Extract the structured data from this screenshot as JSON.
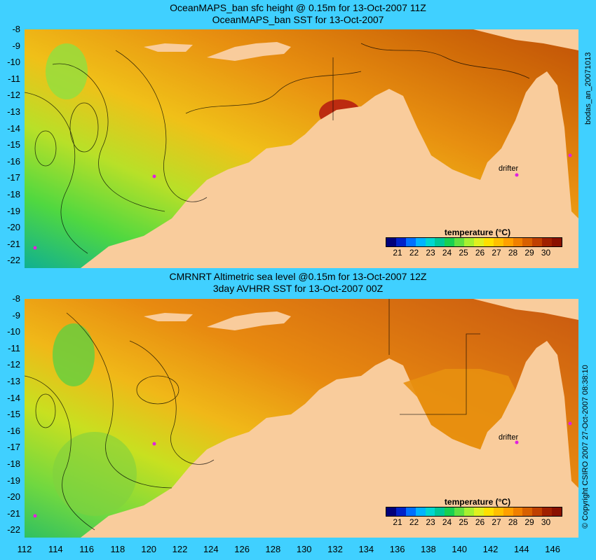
{
  "top_panel": {
    "title_line1": "OceanMAPS_ban sfc height @ 0.15m for 13-Oct-2007 11Z",
    "title_line2": "OceanMAPS_ban SST for 13-Oct-2007",
    "side_label": "bodas_an_20071013",
    "drifter_label": "drifter"
  },
  "bottom_panel": {
    "title_line1": "CMRNRT Altimetric sea level  @0.15m  for 13-Oct-2007 12Z",
    "title_line2": "3day AVHRR SST for 13-Oct-2007 00Z",
    "side_label": "© Copyright CSIRO 2007   27-Oct-2007 08:38:10",
    "drifter_label": "drifter"
  },
  "colorbar": {
    "title": "temperature (°C)",
    "ticks": [
      "21",
      "22",
      "23",
      "24",
      "25",
      "26",
      "27",
      "28",
      "29",
      "30"
    ],
    "colors": [
      "#00007a",
      "#0022c8",
      "#0070ff",
      "#00b4ff",
      "#00d6d0",
      "#00c896",
      "#18d050",
      "#60e040",
      "#a8f030",
      "#e0f020",
      "#ffe000",
      "#ffc000",
      "#ffa000",
      "#f08000",
      "#d86000",
      "#c04000",
      "#a02000",
      "#8a1000"
    ]
  },
  "axes": {
    "lat_labels": [
      "-8",
      "-9",
      "-10",
      "-11",
      "-12",
      "-13",
      "-14",
      "-15",
      "-16",
      "-17",
      "-18",
      "-19",
      "-20",
      "-21",
      "-22"
    ],
    "lon_labels": [
      "112",
      "114",
      "116",
      "118",
      "120",
      "122",
      "124",
      "126",
      "128",
      "130",
      "132",
      "134",
      "136",
      "138",
      "140",
      "142",
      "144",
      "146"
    ]
  },
  "colors": {
    "background": "#40d0ff",
    "land": "#f9cc9c"
  }
}
